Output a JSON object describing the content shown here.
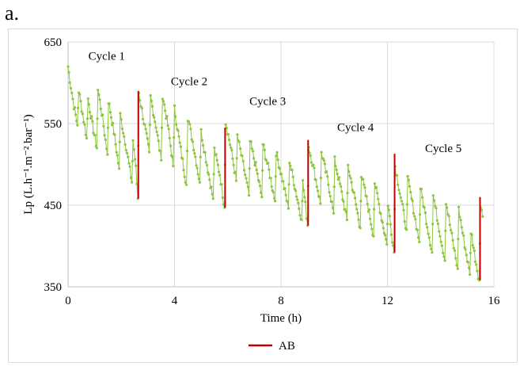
{
  "panel_label": "a.",
  "chart_data": {
    "type": "line",
    "title": "",
    "xlabel": "Time (h)",
    "ylabel": "Lp (L.h⁻¹.m⁻².bar⁻¹)",
    "xlim": [
      0,
      16
    ],
    "ylim": [
      350,
      650
    ],
    "xticks": [
      "0",
      "4",
      "8",
      "12",
      "16"
    ],
    "xtick_values": [
      0,
      4,
      8,
      12,
      16
    ],
    "yticks": [
      "350",
      "450",
      "550",
      "650"
    ],
    "ytick_values": [
      350,
      450,
      550,
      650
    ],
    "grid": true,
    "legend_position": "bottom-center",
    "series": [
      {
        "name": "",
        "color": "#8dc63f",
        "marker": "dot",
        "sawtooth": [
          {
            "t": 0.0,
            "v": 620
          },
          {
            "t": 0.1,
            "v": 596
          },
          {
            "t": 0.22,
            "v": 572
          },
          {
            "t": 0.35,
            "v": 548
          },
          {
            "t": 0.4,
            "v": 590
          },
          {
            "t": 0.55,
            "v": 562
          },
          {
            "t": 0.7,
            "v": 532
          },
          {
            "t": 0.75,
            "v": 580
          },
          {
            "t": 0.92,
            "v": 548
          },
          {
            "t": 1.08,
            "v": 520
          },
          {
            "t": 1.12,
            "v": 592
          },
          {
            "t": 1.3,
            "v": 556
          },
          {
            "t": 1.48,
            "v": 512
          },
          {
            "t": 1.52,
            "v": 578
          },
          {
            "t": 1.72,
            "v": 540
          },
          {
            "t": 1.92,
            "v": 495
          },
          {
            "t": 1.96,
            "v": 560
          },
          {
            "t": 2.18,
            "v": 522
          },
          {
            "t": 2.4,
            "v": 478
          },
          {
            "t": 2.44,
            "v": 530
          },
          {
            "t": 2.55,
            "v": 495
          },
          {
            "t": 2.62,
            "v": 458
          },
          {
            "t": 2.66,
            "v": 588
          },
          {
            "t": 2.85,
            "v": 552
          },
          {
            "t": 3.05,
            "v": 515
          },
          {
            "t": 3.1,
            "v": 582
          },
          {
            "t": 3.3,
            "v": 548
          },
          {
            "t": 3.5,
            "v": 505
          },
          {
            "t": 3.55,
            "v": 585
          },
          {
            "t": 3.75,
            "v": 548
          },
          {
            "t": 3.95,
            "v": 498
          },
          {
            "t": 4.0,
            "v": 568
          },
          {
            "t": 4.2,
            "v": 525
          },
          {
            "t": 4.45,
            "v": 475
          },
          {
            "t": 4.5,
            "v": 558
          },
          {
            "t": 4.72,
            "v": 522
          },
          {
            "t": 4.95,
            "v": 478
          },
          {
            "t": 5.0,
            "v": 540
          },
          {
            "t": 5.22,
            "v": 500
          },
          {
            "t": 5.45,
            "v": 458
          },
          {
            "t": 5.5,
            "v": 518
          },
          {
            "t": 5.7,
            "v": 488
          },
          {
            "t": 5.88,
            "v": 447
          },
          {
            "t": 5.92,
            "v": 552
          },
          {
            "t": 6.12,
            "v": 520
          },
          {
            "t": 6.32,
            "v": 480
          },
          {
            "t": 6.36,
            "v": 535
          },
          {
            "t": 6.58,
            "v": 500
          },
          {
            "t": 6.8,
            "v": 462
          },
          {
            "t": 6.84,
            "v": 528
          },
          {
            "t": 7.05,
            "v": 498
          },
          {
            "t": 7.28,
            "v": 460
          },
          {
            "t": 7.32,
            "v": 525
          },
          {
            "t": 7.55,
            "v": 492
          },
          {
            "t": 7.78,
            "v": 455
          },
          {
            "t": 7.82,
            "v": 515
          },
          {
            "t": 8.05,
            "v": 482
          },
          {
            "t": 8.28,
            "v": 446
          },
          {
            "t": 8.32,
            "v": 505
          },
          {
            "t": 8.55,
            "v": 468
          },
          {
            "t": 8.78,
            "v": 432
          },
          {
            "t": 8.82,
            "v": 478
          },
          {
            "t": 8.92,
            "v": 450
          },
          {
            "t": 9.0,
            "v": 425
          },
          {
            "t": 9.04,
            "v": 522
          },
          {
            "t": 9.25,
            "v": 492
          },
          {
            "t": 9.48,
            "v": 452
          },
          {
            "t": 9.52,
            "v": 515
          },
          {
            "t": 9.75,
            "v": 482
          },
          {
            "t": 9.98,
            "v": 440
          },
          {
            "t": 10.02,
            "v": 505
          },
          {
            "t": 10.25,
            "v": 470
          },
          {
            "t": 10.48,
            "v": 432
          },
          {
            "t": 10.52,
            "v": 498
          },
          {
            "t": 10.75,
            "v": 462
          },
          {
            "t": 10.98,
            "v": 422
          },
          {
            "t": 11.02,
            "v": 488
          },
          {
            "t": 11.25,
            "v": 452
          },
          {
            "t": 11.48,
            "v": 412
          },
          {
            "t": 11.52,
            "v": 478
          },
          {
            "t": 11.75,
            "v": 440
          },
          {
            "t": 11.98,
            "v": 402
          },
          {
            "t": 12.02,
            "v": 452
          },
          {
            "t": 12.15,
            "v": 418
          },
          {
            "t": 12.25,
            "v": 392
          },
          {
            "t": 12.29,
            "v": 498
          },
          {
            "t": 12.5,
            "v": 460
          },
          {
            "t": 12.72,
            "v": 420
          },
          {
            "t": 12.76,
            "v": 482
          },
          {
            "t": 12.98,
            "v": 445
          },
          {
            "t": 13.2,
            "v": 405
          },
          {
            "t": 13.24,
            "v": 472
          },
          {
            "t": 13.46,
            "v": 432
          },
          {
            "t": 13.68,
            "v": 392
          },
          {
            "t": 13.72,
            "v": 462
          },
          {
            "t": 13.94,
            "v": 422
          },
          {
            "t": 14.16,
            "v": 382
          },
          {
            "t": 14.2,
            "v": 455
          },
          {
            "t": 14.42,
            "v": 412
          },
          {
            "t": 14.64,
            "v": 372
          },
          {
            "t": 14.68,
            "v": 445
          },
          {
            "t": 14.9,
            "v": 402
          },
          {
            "t": 15.1,
            "v": 365
          },
          {
            "t": 15.14,
            "v": 418
          },
          {
            "t": 15.3,
            "v": 385
          },
          {
            "t": 15.45,
            "v": 358
          },
          {
            "t": 15.5,
            "v": 448
          },
          {
            "t": 15.58,
            "v": 436
          }
        ]
      },
      {
        "name": "AB",
        "color": "#c00000",
        "segments": [
          {
            "t": 2.64,
            "from": 458,
            "to": 590
          },
          {
            "t": 5.9,
            "from": 447,
            "to": 545
          },
          {
            "t": 9.02,
            "from": 425,
            "to": 530
          },
          {
            "t": 12.27,
            "from": 392,
            "to": 513
          },
          {
            "t": 15.48,
            "from": 358,
            "to": 460
          }
        ]
      }
    ],
    "annotations": [
      {
        "text": "Cycle 1",
        "x": 1.45,
        "y": 628
      },
      {
        "text": "Cycle 2",
        "x": 4.55,
        "y": 597
      },
      {
        "text": "Cycle 3",
        "x": 7.5,
        "y": 573
      },
      {
        "text": "Cycle 4",
        "x": 10.8,
        "y": 541
      },
      {
        "text": "Cycle 5",
        "x": 14.1,
        "y": 515
      }
    ],
    "legend": [
      {
        "label": "AB",
        "color": "#c00000"
      }
    ]
  }
}
